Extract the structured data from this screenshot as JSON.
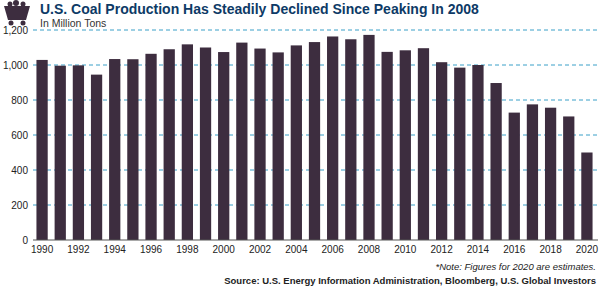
{
  "chart_data": {
    "type": "bar",
    "title": "U.S. Coal Production Has Steadily Declined Since Peaking In 2008",
    "subtitle": "In Million Tons",
    "note": "*Note: Figures for 2020 are estimates.",
    "source": "Source: U.S. Energy Information Administration, Bloomberg, U.S. Global Investors",
    "categories": [
      "1990",
      null,
      "1992",
      null,
      "1994",
      null,
      "1996",
      null,
      "1998",
      null,
      "2000",
      null,
      "2002",
      null,
      "2004",
      null,
      "2006",
      null,
      "2008",
      null,
      "2010",
      null,
      "2012",
      null,
      "2014",
      null,
      "2016",
      null,
      "2018",
      null,
      "2020"
    ],
    "values": [
      1029,
      996,
      998,
      945,
      1034,
      1033,
      1064,
      1090,
      1118,
      1100,
      1074,
      1128,
      1094,
      1072,
      1112,
      1131,
      1163,
      1147,
      1172,
      1075,
      1084,
      1096,
      1016,
      985,
      1000,
      897,
      728,
      775,
      756,
      706,
      500
    ],
    "color": "#3d2d3f",
    "ylim": [
      0,
      1200
    ],
    "yticks": [
      0,
      200,
      400,
      600,
      800,
      {
        "value": 1000,
        "label": "1,000"
      },
      {
        "value": 1200,
        "label": "1,200"
      }
    ],
    "grid": true
  }
}
